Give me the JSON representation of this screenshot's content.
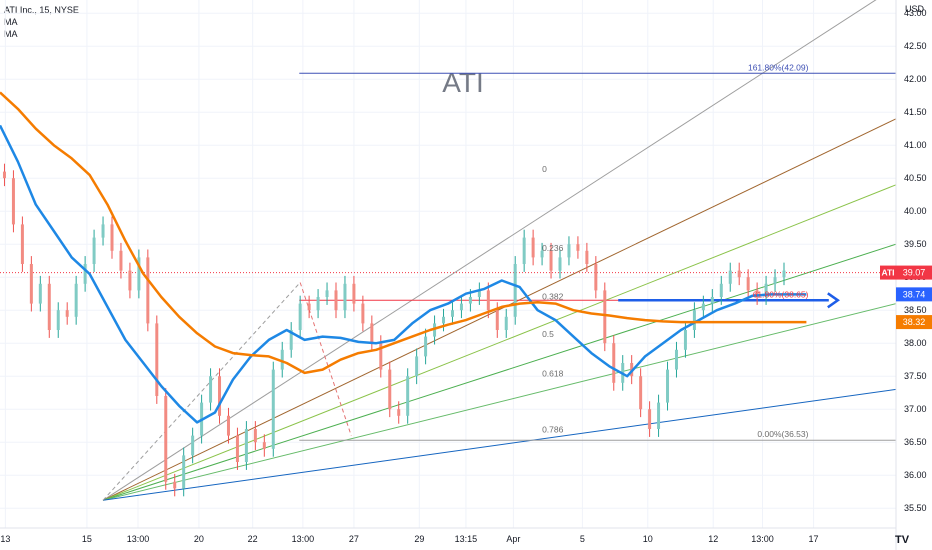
{
  "legend": {
    "symbol_line": "ATI Inc., 15, NYSE",
    "ma1": "MA",
    "ma2": "MA"
  },
  "currency": "USD",
  "watermark": "ATI",
  "logo": "TV",
  "chart_data": {
    "type": "line",
    "title": "ATI",
    "ylim": [
      35.2,
      43.2
    ],
    "y_ticks": [
      "35.50",
      "36.00",
      "36.50",
      "37.00",
      "37.50",
      "38.00",
      "38.50",
      "39.00",
      "39.50",
      "40.00",
      "40.50",
      "41.00",
      "41.50",
      "42.00",
      "42.50",
      "43.00"
    ],
    "y_tick_values": [
      35.5,
      36.0,
      36.5,
      37.0,
      37.5,
      38.0,
      38.5,
      39.0,
      39.5,
      40.0,
      40.5,
      41.0,
      41.5,
      42.0,
      42.5,
      43.0
    ],
    "x_range": [
      0,
      100
    ],
    "x_ticks": [
      {
        "label": "13",
        "t": 0.6
      },
      {
        "label": "15",
        "t": 9.7
      },
      {
        "label": "13:00",
        "t": 15.4
      },
      {
        "label": "20",
        "t": 22.2
      },
      {
        "label": "22",
        "t": 28.2
      },
      {
        "label": "13:00",
        "t": 33.8
      },
      {
        "label": "27",
        "t": 39.5
      },
      {
        "label": "29",
        "t": 46.8
      },
      {
        "label": "13:15",
        "t": 52.0
      },
      {
        "label": "Apr",
        "t": 57.3
      },
      {
        "label": "5",
        "t": 65.0
      },
      {
        "label": "10",
        "t": 72.3
      },
      {
        "label": "12",
        "t": 79.6
      },
      {
        "label": "13:00",
        "t": 85.1
      },
      {
        "label": "17",
        "t": 90.8
      }
    ],
    "price_labels": [
      {
        "text": "ATI",
        "value": "39.07",
        "y": 39.07,
        "color": "#f23645",
        "name": "price-label-last"
      },
      {
        "text": "",
        "value": "38.74",
        "y": 38.74,
        "color": "#2962ff",
        "name": "price-label-ma-fast"
      },
      {
        "text": "",
        "value": "38.32",
        "y": 38.32,
        "color": "#f57c00",
        "name": "price-label-ma-slow"
      }
    ],
    "last_price": 39.07,
    "series": [
      {
        "name": "",
        "color": "#1e88e5",
        "x": [
          0,
          2,
          4,
          6,
          8,
          10,
          12,
          14,
          16,
          18,
          20,
          22,
          24,
          26,
          28,
          30,
          32,
          34,
          36,
          38,
          40,
          42,
          44,
          46,
          48,
          50,
          52,
          54,
          56,
          58,
          60,
          62,
          64,
          66,
          68,
          70,
          72,
          74,
          76,
          78,
          80,
          82,
          84,
          86,
          88,
          90
        ],
        "values": [
          41.3,
          40.75,
          40.1,
          39.7,
          39.3,
          39.05,
          38.55,
          38.05,
          37.7,
          37.35,
          37.05,
          36.8,
          36.95,
          37.45,
          37.8,
          38.05,
          38.2,
          38.05,
          38.1,
          38.08,
          38.02,
          38.0,
          38.05,
          38.3,
          38.5,
          38.6,
          38.75,
          38.82,
          38.95,
          38.85,
          38.5,
          38.35,
          38.1,
          37.85,
          37.65,
          37.5,
          37.8,
          38.0,
          38.2,
          38.35,
          38.5,
          38.6,
          38.72,
          38.74,
          38.74,
          38.74
        ]
      },
      {
        "name": "",
        "color": "#f57c00",
        "x": [
          0,
          2,
          4,
          6,
          8,
          10,
          12,
          14,
          16,
          18,
          20,
          22,
          24,
          26,
          28,
          30,
          32,
          34,
          36,
          38,
          40,
          42,
          44,
          46,
          48,
          50,
          52,
          54,
          56,
          58,
          60,
          62,
          64,
          66,
          68,
          70,
          72,
          74,
          76,
          78,
          80,
          82,
          84,
          86,
          88,
          90
        ],
        "values": [
          41.8,
          41.55,
          41.25,
          41.0,
          40.8,
          40.55,
          40.1,
          39.55,
          39.05,
          38.7,
          38.4,
          38.15,
          37.95,
          37.85,
          37.82,
          37.8,
          37.7,
          37.55,
          37.6,
          37.75,
          37.85,
          37.9,
          38.0,
          38.1,
          38.2,
          38.28,
          38.35,
          38.45,
          38.55,
          38.6,
          38.62,
          38.6,
          38.5,
          38.45,
          38.42,
          38.38,
          38.35,
          38.33,
          38.32,
          38.32,
          38.32,
          38.32,
          38.32,
          38.32,
          38.32,
          38.32
        ]
      }
    ],
    "closes_x_step": 0.5,
    "closes": [
      40.5,
      39.8,
      39.2,
      38.6,
      38.9,
      38.2,
      38.5,
      38.4,
      38.9,
      39.2,
      39.6,
      39.8,
      39.4,
      39.1,
      38.8,
      39.3,
      38.3,
      37.2,
      35.9,
      35.8,
      36.3,
      36.6,
      37.1,
      37.5,
      36.9,
      36.6,
      36.2,
      36.7,
      36.5,
      36.4,
      37.6,
      37.9,
      38.2,
      38.6,
      38.5,
      38.7,
      38.8,
      38.5,
      38.9,
      38.6,
      38.3,
      38.0,
      37.6,
      37.0,
      36.9,
      37.5,
      37.8,
      38.1,
      38.3,
      38.4,
      38.5,
      38.6,
      38.7,
      38.8,
      38.5,
      38.2,
      38.4,
      39.2,
      39.6,
      39.3,
      39.4,
      39.1,
      39.3,
      39.5,
      39.4,
      39.2,
      38.8,
      38.0,
      37.4,
      37.7,
      37.5,
      37.0,
      36.7,
      37.1,
      37.6,
      37.9,
      38.2,
      38.5,
      38.6,
      38.7,
      38.9,
      39.1,
      39.0,
      38.8,
      38.7,
      38.9,
      39.0,
      39.1
    ],
    "annotations": [
      {
        "text": "0",
        "x": 60.5,
        "y": 40.55
      },
      {
        "text": "0.236",
        "x": 60.5,
        "y": 39.35
      },
      {
        "text": "0.382",
        "x": 60.5,
        "y": 38.62
      },
      {
        "text": "0.5",
        "x": 60.5,
        "y": 38.05
      },
      {
        "text": "0.618",
        "x": 60.5,
        "y": 37.45
      },
      {
        "text": "0.786",
        "x": 60.5,
        "y": 36.6
      },
      {
        "text": "161.80%(42.09)",
        "x": 88.0,
        "y": 42.09
      },
      {
        "text": "61.80%(38.65)",
        "x": 88.0,
        "y": 38.65
      },
      {
        "text": "0.00%(36.53)",
        "x": 88.0,
        "y": 36.53
      }
    ]
  }
}
